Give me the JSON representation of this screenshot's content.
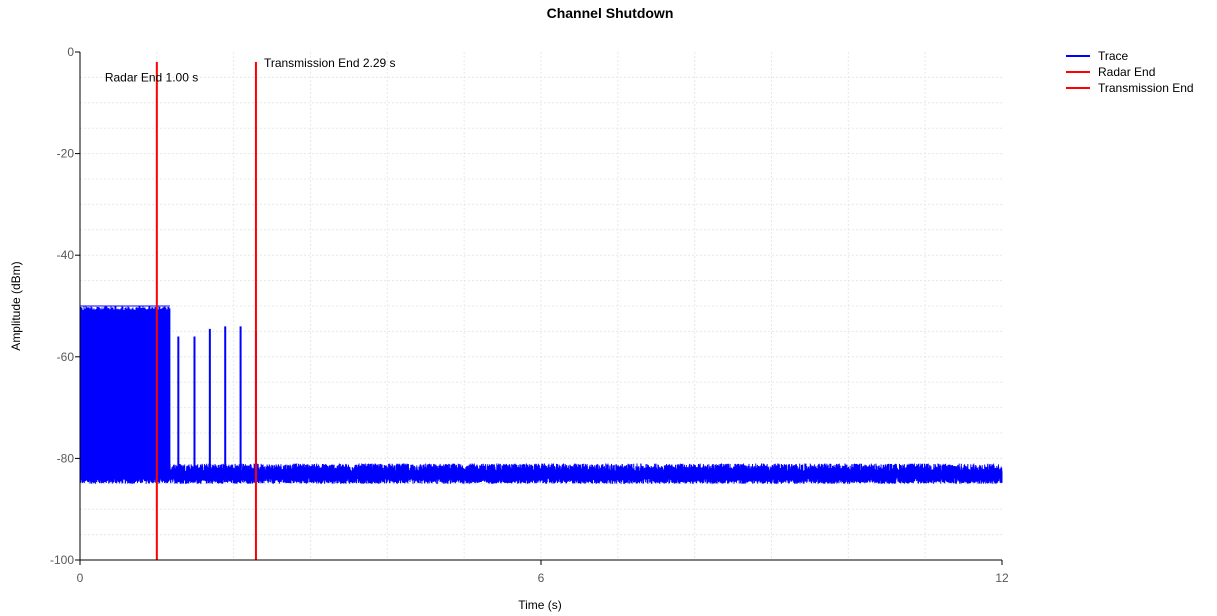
{
  "chart_data": {
    "type": "line",
    "title": "Channel Shutdown",
    "xlabel": "Time (s)",
    "ylabel": "Amplitude (dBm)",
    "xlim": [
      0,
      12
    ],
    "ylim": [
      -100,
      0
    ],
    "x_ticks": [
      0,
      6,
      12
    ],
    "y_ticks": [
      -100,
      -80,
      -60,
      -40,
      -20,
      0
    ],
    "grid": true,
    "legend_position": "top-right",
    "series": [
      {
        "name": "Trace",
        "color": "#0000ff",
        "noise_floor": [
          -85,
          -81
        ],
        "bursts": {
          "x_range": [
            0.0,
            1.17
          ],
          "y_range": [
            -84,
            -50
          ]
        },
        "spikes": [
          {
            "x": 1.28,
            "y": -56
          },
          {
            "x": 1.49,
            "y": -56
          },
          {
            "x": 1.69,
            "y": -54.5
          },
          {
            "x": 1.89,
            "y": -54
          },
          {
            "x": 2.09,
            "y": -54
          },
          {
            "x": 2.29,
            "y": -55
          }
        ]
      },
      {
        "name": "Radar End",
        "color": "#ff0000",
        "x": 1.0
      },
      {
        "name": "Transmission End",
        "color": "#ff0000",
        "x": 2.29
      }
    ],
    "annotations": [
      {
        "text": "Radar End 1.00 s",
        "x": 1.0,
        "y": -5
      },
      {
        "text": "Transmission End 2.29 s",
        "x": 2.29,
        "y": -2.2
      }
    ]
  }
}
